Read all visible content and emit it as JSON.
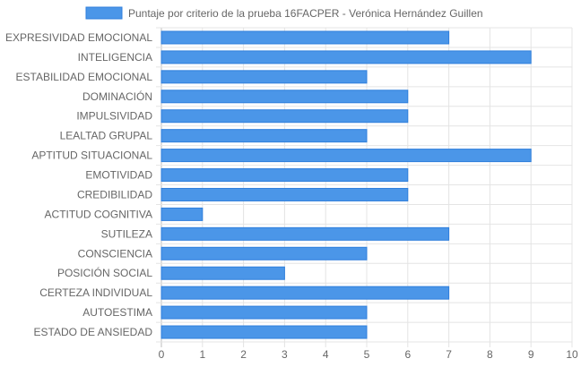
{
  "chart_data": {
    "type": "bar",
    "orientation": "horizontal",
    "legend": {
      "position": "top",
      "label": "Puntaje por criterio de la prueba 16FACPER - Verónica Hernández Guillen"
    },
    "categories": [
      "EXPRESIVIDAD EMOCIONAL",
      "INTELIGENCIA",
      "ESTABILIDAD EMOCIONAL",
      "DOMINACIÓN",
      "IMPULSIVIDAD",
      "LEALTAD GRUPAL",
      "APTITUD SITUACIONAL",
      "EMOTIVIDAD",
      "CREDIBILIDAD",
      "ACTITUD COGNITIVA",
      "SUTILEZA",
      "CONSCIENCIA",
      "POSICIÓN SOCIAL",
      "CERTEZA INDIVIDUAL",
      "AUTOESTIMA",
      "ESTADO DE ANSIEDAD"
    ],
    "series": [
      {
        "name": "Puntaje por criterio de la prueba 16FACPER - Verónica Hernández Guillen",
        "values": [
          7,
          9,
          5,
          6,
          6,
          5,
          9,
          6,
          6,
          1,
          7,
          5,
          3,
          7,
          5,
          5
        ],
        "color": "#4b96e8"
      }
    ],
    "xlim": [
      0,
      10
    ],
    "xticks": [
      "0",
      "1",
      "2",
      "3",
      "4",
      "5",
      "6",
      "7",
      "8",
      "9",
      "10"
    ],
    "grid": true
  },
  "colors": {
    "bar_fill": "#4b96e8",
    "bar_stroke": "#2f7fdc",
    "grid": "#e4e4e4",
    "axis": "#bdbdbd",
    "text": "#666666"
  }
}
